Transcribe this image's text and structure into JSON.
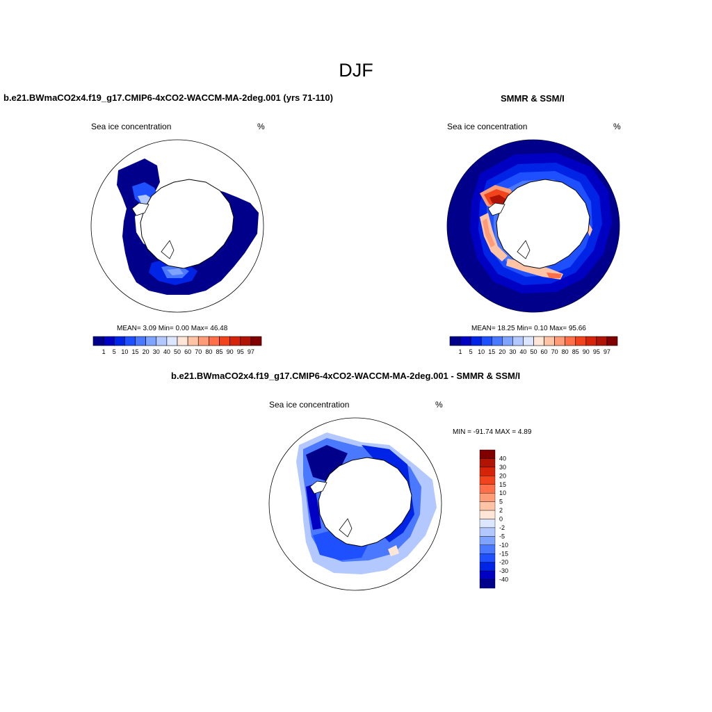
{
  "title": "DJF",
  "panels": [
    {
      "id": "model",
      "title": "b.e21.BWmaCO2x4.f19_g17.CMIP6-4xCO2-WACCM-MA-2deg.001 (yrs 71-110)",
      "left_label": "Sea ice concentration",
      "right_label": "%",
      "stats": {
        "mean_label": "MEAN=",
        "mean": "3.09",
        "min_label": "Min=",
        "min": "0.00",
        "max_label": "Max=",
        "max": "46.48"
      }
    },
    {
      "id": "obs",
      "title": "SMMR & SSM/I",
      "left_label": "Sea ice concentration",
      "right_label": "%",
      "stats": {
        "mean_label": "MEAN=",
        "mean": "18.25",
        "min_label": "Min=",
        "min": "0.10",
        "max_label": "Max=",
        "max": "95.66"
      }
    },
    {
      "id": "diff",
      "title": "b.e21.BWmaCO2x4.f19_g17.CMIP6-4xCO2-WACCM-MA-2deg.001 - SMMR & SSM/I",
      "left_label": "Sea ice concentration",
      "right_label": "%",
      "minmax_text": "MIN = -91.74 MAX =   4.89"
    }
  ],
  "colorbar_horizontal": {
    "labels": [
      "1",
      "5",
      "10",
      "15",
      "20",
      "30",
      "40",
      "50",
      "60",
      "70",
      "80",
      "85",
      "90",
      "95",
      "97"
    ],
    "colors": [
      "#00008b",
      "#0000c2",
      "#0024e6",
      "#1e50ff",
      "#4a78ff",
      "#7fa4ff",
      "#b3c8ff",
      "#dce6ff",
      "#ffe6d6",
      "#ffc3a6",
      "#ff9c78",
      "#ff7048",
      "#f2441c",
      "#d62408",
      "#b01404",
      "#800000"
    ]
  },
  "colorbar_vertical": {
    "labels": [
      "40",
      "30",
      "20",
      "15",
      "10",
      "5",
      "2",
      "0",
      "-2",
      "-5",
      "-10",
      "-15",
      "-20",
      "-30",
      "-40"
    ],
    "colors": [
      "#800000",
      "#b01404",
      "#d62408",
      "#f2441c",
      "#ff7048",
      "#ff9c78",
      "#ffc3a6",
      "#ffe6d6",
      "#dce6ff",
      "#b3c8ff",
      "#7fa4ff",
      "#4a78ff",
      "#1e50ff",
      "#0024e6",
      "#0000c2",
      "#00008b"
    ]
  }
}
